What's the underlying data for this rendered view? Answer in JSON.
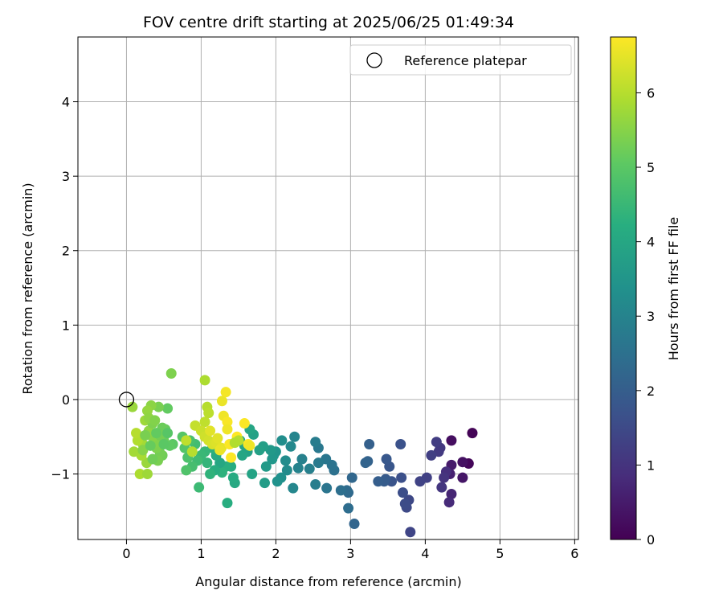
{
  "chart_data": {
    "type": "scatter",
    "title": "FOV centre drift starting at 2025/06/25 01:49:34",
    "xlabel": "Angular distance from reference (arcmin)",
    "ylabel": "Rotation from reference (arcmin)",
    "xlim": [
      -0.65,
      6.05
    ],
    "ylim": [
      -1.88,
      4.87
    ],
    "xticks": [
      0,
      1,
      2,
      3,
      4,
      5,
      6
    ],
    "yticks": [
      -1,
      0,
      1,
      2,
      3,
      4
    ],
    "xtick_labels": [
      "0",
      "1",
      "2",
      "3",
      "4",
      "5",
      "6"
    ],
    "ytick_labels": [
      "−1",
      "0",
      "1",
      "2",
      "3",
      "4"
    ],
    "grid": true,
    "legend": {
      "position": "top-right",
      "entries": [
        "Reference platepar"
      ]
    },
    "reference_point": {
      "x": 0,
      "y": 0,
      "marker": "open-circle"
    },
    "colorbar": {
      "label": "Hours from first FF file",
      "colormap": "viridis",
      "range": [
        0,
        6.75
      ],
      "ticks": [
        0,
        1,
        2,
        3,
        4,
        5,
        6
      ],
      "tick_labels": [
        "0",
        "1",
        "2",
        "3",
        "4",
        "5",
        "6"
      ]
    },
    "points": [
      [
        4.63,
        -0.45,
        0.05
      ],
      [
        4.58,
        -0.86,
        0.1
      ],
      [
        4.5,
        -0.84,
        0.3
      ],
      [
        4.5,
        -1.05,
        0.4
      ],
      [
        4.35,
        -0.55,
        0.25
      ],
      [
        4.35,
        -0.88,
        0.5
      ],
      [
        4.33,
        -1.0,
        0.6
      ],
      [
        4.35,
        -1.27,
        0.7
      ],
      [
        4.32,
        -1.38,
        0.8
      ],
      [
        4.28,
        -0.97,
        0.9
      ],
      [
        4.25,
        -1.05,
        1.0
      ],
      [
        4.22,
        -1.18,
        1.05
      ],
      [
        4.2,
        -0.65,
        1.1
      ],
      [
        4.18,
        -0.7,
        1.15
      ],
      [
        4.15,
        -0.57,
        1.2
      ],
      [
        4.08,
        -0.75,
        1.25
      ],
      [
        4.02,
        -1.05,
        1.3
      ],
      [
        3.93,
        -1.1,
        1.35
      ],
      [
        3.8,
        -1.78,
        1.4
      ],
      [
        3.78,
        -1.35,
        1.45
      ],
      [
        3.75,
        -1.45,
        1.5
      ],
      [
        3.73,
        -1.4,
        1.55
      ],
      [
        3.7,
        -1.25,
        1.6
      ],
      [
        3.68,
        -1.05,
        1.65
      ],
      [
        3.67,
        -0.6,
        1.7
      ],
      [
        3.55,
        -1.1,
        1.75
      ],
      [
        3.52,
        -0.9,
        1.8
      ],
      [
        3.48,
        -0.8,
        1.85
      ],
      [
        3.47,
        -1.07,
        1.9
      ],
      [
        3.45,
        -1.1,
        1.95
      ],
      [
        3.37,
        -1.1,
        2.0
      ],
      [
        3.25,
        -0.6,
        2.05
      ],
      [
        3.23,
        -0.83,
        2.1
      ],
      [
        3.2,
        -0.85,
        2.15
      ],
      [
        3.05,
        -1.67,
        2.2
      ],
      [
        3.02,
        -1.05,
        2.25
      ],
      [
        2.97,
        -1.25,
        2.3
      ],
      [
        2.95,
        -1.22,
        2.35
      ],
      [
        2.97,
        -1.46,
        2.4
      ],
      [
        2.87,
        -1.22,
        2.45
      ],
      [
        2.78,
        -0.95,
        2.5
      ],
      [
        2.75,
        -0.88,
        2.55
      ],
      [
        2.68,
        -1.19,
        2.6
      ],
      [
        2.67,
        -0.8,
        2.65
      ],
      [
        2.57,
        -0.65,
        2.7
      ],
      [
        2.57,
        -0.85,
        2.75
      ],
      [
        2.53,
        -0.57,
        2.8
      ],
      [
        2.53,
        -1.14,
        2.85
      ],
      [
        2.45,
        -0.93,
        2.9
      ],
      [
        2.35,
        -0.8,
        2.95
      ],
      [
        2.3,
        -0.92,
        3.0
      ],
      [
        2.25,
        -0.5,
        3.05
      ],
      [
        2.23,
        -1.19,
        3.1
      ],
      [
        2.2,
        -0.63,
        3.15
      ],
      [
        2.15,
        -0.95,
        3.2
      ],
      [
        2.13,
        -0.82,
        3.25
      ],
      [
        2.08,
        -0.55,
        3.3
      ],
      [
        2.07,
        -1.05,
        3.35
      ],
      [
        2.02,
        -1.1,
        3.4
      ],
      [
        2.0,
        -0.7,
        3.45
      ],
      [
        1.97,
        -0.75,
        3.5
      ],
      [
        1.95,
        -0.8,
        3.55
      ],
      [
        1.93,
        -0.68,
        3.6
      ],
      [
        1.87,
        -0.9,
        3.65
      ],
      [
        1.85,
        -1.12,
        3.7
      ],
      [
        1.83,
        -0.63,
        3.75
      ],
      [
        1.78,
        -0.68,
        3.8
      ],
      [
        1.7,
        -0.47,
        3.85
      ],
      [
        1.68,
        -1.0,
        3.9
      ],
      [
        1.65,
        -0.4,
        3.95
      ],
      [
        1.62,
        -0.7,
        3.85
      ],
      [
        1.58,
        -0.62,
        3.9
      ],
      [
        1.55,
        -0.75,
        3.95
      ],
      [
        1.52,
        -0.55,
        4.0
      ],
      [
        1.45,
        -1.12,
        4.05
      ],
      [
        1.43,
        -1.05,
        4.1
      ],
      [
        1.4,
        -0.9,
        4.15
      ],
      [
        1.35,
        -1.39,
        4.2
      ],
      [
        1.33,
        -0.9,
        4.25
      ],
      [
        1.28,
        -0.98,
        4.3
      ],
      [
        1.25,
        -0.85,
        4.0
      ],
      [
        1.2,
        -0.75,
        4.1
      ],
      [
        1.18,
        -0.95,
        4.2
      ],
      [
        1.15,
        -0.65,
        4.3
      ],
      [
        1.12,
        -1.0,
        4.35
      ],
      [
        1.08,
        -0.85,
        4.4
      ],
      [
        1.05,
        -0.7,
        4.45
      ],
      [
        1.0,
        -0.75,
        4.5
      ],
      [
        0.97,
        -1.18,
        4.55
      ],
      [
        0.95,
        -0.82,
        4.6
      ],
      [
        0.92,
        -0.6,
        4.65
      ],
      [
        0.88,
        -0.9,
        4.7
      ],
      [
        0.85,
        -0.55,
        4.75
      ],
      [
        0.82,
        -0.78,
        4.8
      ],
      [
        0.8,
        -0.95,
        4.85
      ],
      [
        0.78,
        -0.65,
        4.9
      ],
      [
        0.75,
        -0.5,
        4.95
      ],
      [
        0.62,
        -0.6,
        5.0
      ],
      [
        0.58,
        -0.62,
        5.05
      ],
      [
        0.55,
        -0.12,
        5.1
      ],
      [
        0.52,
        -0.4,
        5.15
      ],
      [
        0.5,
        -0.55,
        5.2
      ],
      [
        0.48,
        -0.75,
        5.25
      ],
      [
        0.45,
        -0.72,
        5.3
      ],
      [
        0.43,
        -0.1,
        5.35
      ],
      [
        0.4,
        -0.65,
        5.4
      ],
      [
        0.38,
        -0.58,
        5.45
      ],
      [
        0.35,
        -0.5,
        5.5
      ],
      [
        0.33,
        -0.08,
        5.55
      ],
      [
        0.3,
        -0.42,
        5.6
      ],
      [
        0.28,
        -0.15,
        5.65
      ],
      [
        0.27,
        -0.85,
        5.7
      ],
      [
        0.25,
        -0.28,
        5.75
      ],
      [
        0.22,
        -0.6,
        5.8
      ],
      [
        0.2,
        -0.75,
        5.85
      ],
      [
        0.18,
        -1.0,
        5.9
      ],
      [
        0.15,
        -0.55,
        5.95
      ],
      [
        0.13,
        -0.45,
        6.0
      ],
      [
        0.1,
        -0.7,
        5.8
      ],
      [
        0.08,
        -0.1,
        5.7
      ],
      [
        0.28,
        -1.0,
        5.75
      ],
      [
        0.35,
        -0.32,
        5.4
      ],
      [
        0.42,
        -0.82,
        5.35
      ],
      [
        0.48,
        -0.38,
        5.2
      ],
      [
        0.6,
        0.35,
        5.4
      ],
      [
        0.3,
        -0.25,
        5.6
      ],
      [
        0.22,
        -0.68,
        5.5
      ],
      [
        0.38,
        -0.28,
        5.45
      ],
      [
        0.45,
        -0.48,
        5.3
      ],
      [
        0.35,
        -0.8,
        5.25
      ],
      [
        0.25,
        -0.48,
        5.35
      ],
      [
        0.32,
        -0.62,
        5.15
      ],
      [
        0.4,
        -0.45,
        5.1
      ],
      [
        0.5,
        -0.6,
        5.0
      ],
      [
        0.55,
        -0.45,
        4.95
      ],
      [
        1.05,
        0.26,
        5.9
      ],
      [
        1.08,
        -0.1,
        6.0
      ],
      [
        1.1,
        -0.18,
        6.05
      ],
      [
        1.05,
        -0.3,
        6.1
      ],
      [
        0.92,
        -0.35,
        6.15
      ],
      [
        1.0,
        -0.42,
        6.2
      ],
      [
        1.05,
        -0.5,
        6.25
      ],
      [
        1.1,
        -0.55,
        6.3
      ],
      [
        1.15,
        -0.6,
        6.35
      ],
      [
        1.2,
        -0.58,
        6.4
      ],
      [
        1.22,
        -0.52,
        6.45
      ],
      [
        1.27,
        -0.65,
        6.5
      ],
      [
        1.28,
        -0.02,
        6.55
      ],
      [
        1.3,
        -0.22,
        6.6
      ],
      [
        1.33,
        0.1,
        6.65
      ],
      [
        1.35,
        -0.3,
        6.7
      ],
      [
        1.38,
        -0.6,
        6.72
      ],
      [
        1.4,
        -0.78,
        6.74
      ],
      [
        1.48,
        -0.5,
        6.75
      ],
      [
        1.58,
        -0.32,
        6.73
      ],
      [
        1.63,
        -0.6,
        6.7
      ],
      [
        1.35,
        -0.4,
        6.6
      ],
      [
        1.25,
        -0.68,
        6.55
      ],
      [
        0.88,
        -0.7,
        6.0
      ],
      [
        0.8,
        -0.55,
        6.1
      ],
      [
        1.5,
        -0.55,
        6.0
      ],
      [
        1.65,
        -0.62,
        6.6
      ],
      [
        1.12,
        -0.42,
        6.45
      ],
      [
        1.45,
        -0.58,
        5.95
      ]
    ]
  }
}
